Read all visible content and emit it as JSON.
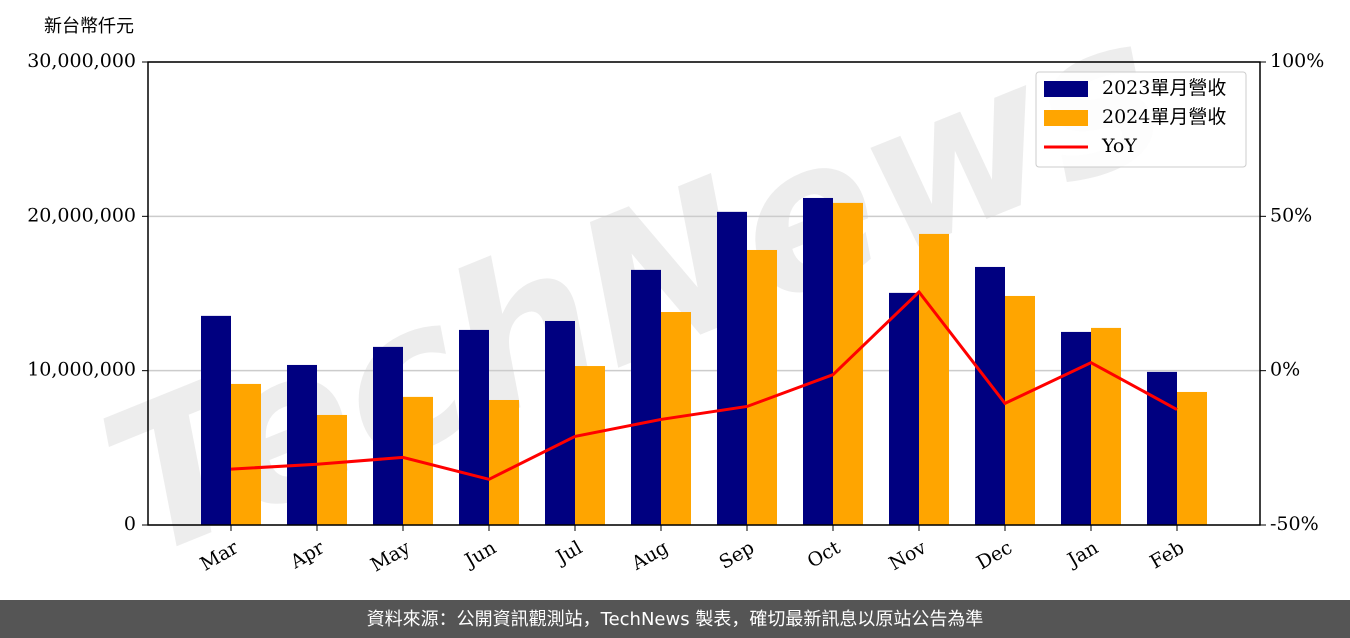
{
  "chart_data": {
    "type": "bar",
    "y_axis_label": "新台幣仟元",
    "watermark": "TechNews",
    "footer": "資料來源：公開資訊觀測站，TechNews 製表，確切最新訊息以原站公告為準",
    "categories": [
      "Mar",
      "Apr",
      "May",
      "Jun",
      "Jul",
      "Aug",
      "Sep",
      "Oct",
      "Nov",
      "Dec",
      "Jan",
      "Feb"
    ],
    "series": [
      {
        "name": "2023單月營收",
        "color": "#000080",
        "values": [
          13550000,
          10370000,
          11540000,
          12640000,
          13220000,
          16530000,
          20290000,
          21190000,
          15040000,
          16720000,
          12510000,
          9920000
        ]
      },
      {
        "name": "2024單月營收",
        "color": "#ffa500",
        "values": [
          9140000,
          7130000,
          8300000,
          8100000,
          10300000,
          13800000,
          17820000,
          20870000,
          18860000,
          14840000,
          12770000,
          8620000
        ]
      },
      {
        "name": "YoY",
        "color": "#ff0000",
        "type": "line",
        "axis": "y2",
        "values": [
          -31.9,
          -30.3,
          -28.1,
          -35.2,
          -21.3,
          -15.8,
          -11.6,
          -1.3,
          25.5,
          -10.6,
          2.6,
          -12.6
        ]
      }
    ],
    "ylim": [
      0,
      30000000
    ],
    "yticks": [
      0,
      {
        "value": 10000000,
        "label": "10,000,000"
      },
      {
        "value": 20000000,
        "label": "20,000,000"
      },
      {
        "value": 30000000,
        "label": "30,000,000"
      }
    ],
    "y2lim": [
      -50,
      100
    ],
    "y2ticks": [
      {
        "value": -50,
        "label": "-50%"
      },
      {
        "value": 0,
        "label": "0%"
      },
      {
        "value": 50,
        "label": "50%"
      },
      {
        "value": 100,
        "label": "100%"
      }
    ],
    "grid": true,
    "legend": "upper right"
  }
}
